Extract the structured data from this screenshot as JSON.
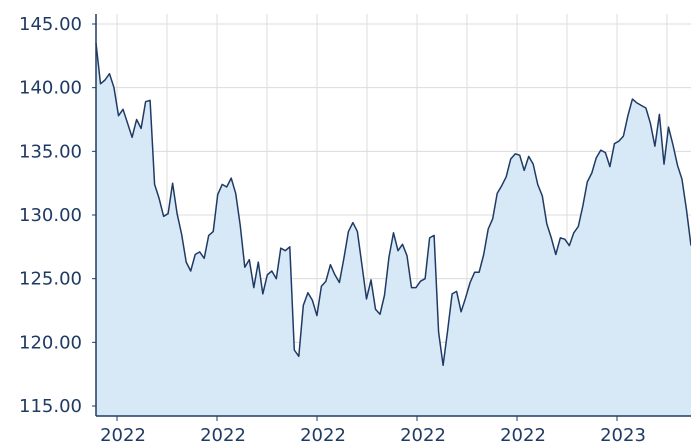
{
  "chart_data": {
    "type": "area",
    "title": "",
    "xlabel": "",
    "ylabel": "",
    "ylim": [
      115,
      145
    ],
    "x_tick_labels": [
      "2022",
      "2022",
      "2022",
      "2022",
      "2022",
      "2023"
    ],
    "y_tick_labels": [
      "115.00",
      "120.00",
      "125.00",
      "130.00",
      "135.00",
      "140.00",
      "145.00"
    ],
    "grid": true,
    "colors": {
      "line": "#1f3b63",
      "fill": "#d7e8f7",
      "grid": "#dcdcdc",
      "text": "#1f3b63"
    },
    "series": [
      {
        "values": [
          143.5,
          140.3,
          140.6,
          141.1,
          140.0,
          137.8,
          138.3,
          137.2,
          136.1,
          137.5,
          136.8,
          138.9,
          139.0,
          132.4,
          131.3,
          129.9,
          130.1,
          132.5,
          130.1,
          128.5,
          126.3,
          125.6,
          126.9,
          127.1,
          126.6,
          128.4,
          128.7,
          131.6,
          132.4,
          132.2,
          132.9,
          131.7,
          129.2,
          125.9,
          126.5,
          124.3,
          126.3,
          123.8,
          125.3,
          125.6,
          125.0,
          127.4,
          127.2,
          127.5,
          119.4,
          118.9,
          122.9,
          123.9,
          123.3,
          122.1,
          124.4,
          124.8,
          126.1,
          125.3,
          124.7,
          126.6,
          128.7,
          129.4,
          128.7,
          126.1,
          123.4,
          124.9,
          122.6,
          122.2,
          123.7,
          126.7,
          128.6,
          127.2,
          127.7,
          126.8,
          124.3,
          124.3,
          124.8,
          125.0,
          128.2,
          128.4,
          120.8,
          118.2,
          120.9,
          123.8,
          124.0,
          122.4,
          123.5,
          124.7,
          125.5,
          125.5,
          126.9,
          128.9,
          129.7,
          131.7,
          132.3,
          133.0,
          134.4,
          134.8,
          134.7,
          133.5,
          134.6,
          134.0,
          132.4,
          131.5,
          129.3,
          128.2,
          126.9,
          128.2,
          128.1,
          127.6,
          128.6,
          129.1,
          130.7,
          132.6,
          133.3,
          134.5,
          135.1,
          134.9,
          133.8,
          135.6,
          135.8,
          136.2,
          137.8,
          139.1,
          138.8,
          138.6,
          138.4,
          137.2,
          135.4,
          137.9,
          134.0,
          136.9,
          135.5,
          133.9,
          132.8,
          130.4,
          127.6
        ]
      }
    ]
  }
}
